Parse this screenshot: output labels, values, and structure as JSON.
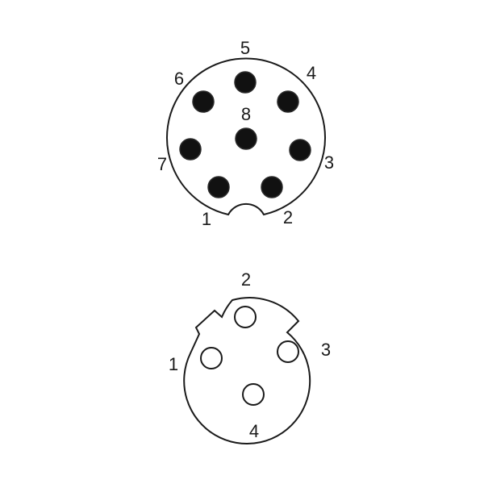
{
  "connector_8pin": {
    "name": "8-pin circular connector",
    "pins": [
      {
        "number": "1"
      },
      {
        "number": "2"
      },
      {
        "number": "3"
      },
      {
        "number": "4"
      },
      {
        "number": "5"
      },
      {
        "number": "6"
      },
      {
        "number": "7"
      },
      {
        "number": "8"
      }
    ]
  },
  "connector_4pin": {
    "name": "4-pin circular connector",
    "pins": [
      {
        "number": "1"
      },
      {
        "number": "2"
      },
      {
        "number": "3"
      },
      {
        "number": "4"
      }
    ]
  },
  "colors": {
    "line": "#1a1a1a",
    "pin_fill": "#111111",
    "background": "#ffffff"
  }
}
